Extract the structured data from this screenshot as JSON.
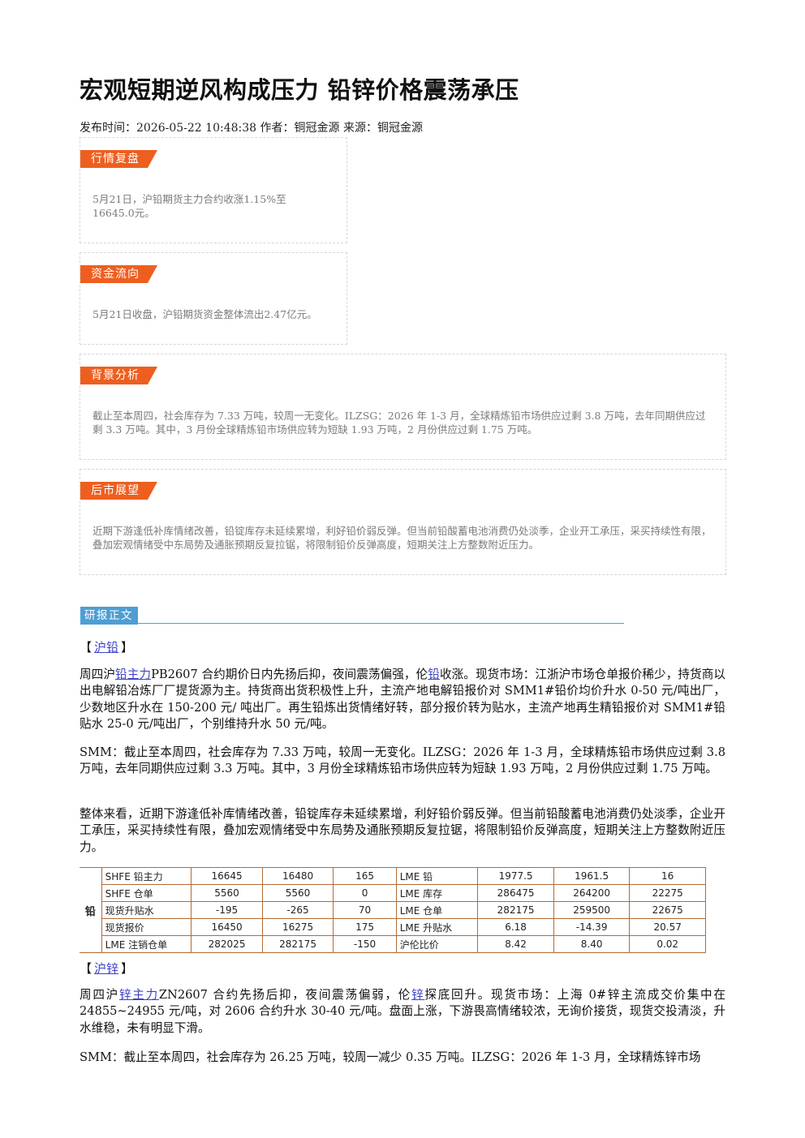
{
  "article": {
    "title": "宏观短期逆风构成压力 铅锌价格震荡承压",
    "meta": "发布时间：2026-05-22 10:48:38 作者：铜冠金源 来源：铜冠金源"
  },
  "cards": {
    "market_review": {
      "tag": "行情复盘",
      "text": "5月21日，沪铅期货主力合约收涨1.15%至16645.0元。"
    },
    "fund_flow": {
      "tag": "资金流向",
      "text": "5月21日收盘，沪铅期货资金整体流出2.47亿元。"
    },
    "background": {
      "tag": "背景分析",
      "text": "截止至本周四，社会库存为 7.33 万吨，较周一无变化。ILZSG：2026 年 1-3 月，全球精炼铅市场供应过剩 3.8 万吨，去年同期供应过剩 3.3 万吨。其中，3 月份全球精炼铅市场供应转为短缺 1.93 万吨，2 月份供应过剩 1.75 万吨。"
    },
    "outlook": {
      "tag": "后市展望",
      "text": "近期下游逢低补库情绪改善，铅锭库存未延续累增，利好铅价弱反弹。但当前铅酸蓄电池消费仍处淡季，企业开工承压，采买持续性有限，叠加宏观情绪受中东局势及通胀预期反复拉锯，将限制铅价反弹高度，短期关注上方整数附近压力。"
    }
  },
  "report": {
    "tag": "研报正文",
    "lead": {
      "bracket_open": "【",
      "link": "沪铅",
      "bracket_close": "】",
      "p1": {
        "a": "周四沪",
        "link1": "铅主力",
        "b": "PB2607 合约期价日内先扬后抑，夜间震荡偏强，伦",
        "link2": "铅",
        "c": "收涨。现货市场：江浙沪市场仓单报价稀少，持货商以出电解铅冶炼厂厂提货源为主。持货商出货积极性上升，主流产地电解铅报价对 SMM1#铅价均价升水 0-50 元/吨出厂，少数地区升水在 150-200 元/ 吨出厂。再生铅炼出货情绪好转，部分报价转为贴水，主流产地再生精铅报价对 SMM1#铅贴水 25-0 元/吨出厂，个别维持升水 50 元/吨。"
      },
      "p2": "SMM：截止至本周四，社会库存为 7.33 万吨，较周一无变化。ILZSG：2026 年 1-3 月，全球精炼铅市场供应过剩 3.8 万吨，去年同期供应过剩 3.3 万吨。其中，3 月份全球精炼铅市场供应转为短缺 1.93 万吨，2 月份供应过剩 1.75 万吨。",
      "p3": "整体来看，近期下游逢低补库情绪改善，铅锭库存未延续累增，利好铅价弱反弹。但当前铅酸蓄电池消费仍处淡季，企业开工承压，采买持续性有限，叠加宏观情绪受中东局势及通胀预期反复拉锯，将限制铅价反弹高度，短期关注上方整数附近压力。"
    },
    "table": {
      "metal": "铅",
      "rows": [
        [
          "SHFE 铅主力",
          "16645",
          "16480",
          "165",
          "LME 铅",
          "1977.5",
          "1961.5",
          "16"
        ],
        [
          "SHFE 仓单",
          "5560",
          "5560",
          "0",
          "LME 库存",
          "286475",
          "264200",
          "22275"
        ],
        [
          "现货升贴水",
          "-195",
          "-265",
          "70",
          "LME 仓单",
          "282175",
          "259500",
          "22675"
        ],
        [
          "现货报价",
          "16450",
          "16275",
          "175",
          "LME 升贴水",
          "6.18",
          "-14.39",
          "20.57"
        ],
        [
          "LME 注销仓单",
          "282025",
          "282175",
          "-150",
          "沪伦比价",
          "8.42",
          "8.40",
          "0.02"
        ]
      ]
    },
    "zinc": {
      "bracket_open": "【",
      "link": "沪锌",
      "bracket_close": "】",
      "p1": {
        "a": "周四沪",
        "link1": "锌主力",
        "b": "ZN2607 合约先扬后抑，夜间震荡偏弱，伦",
        "link2": "锌",
        "c": "探底回升。现货市场：上海 0#锌主流成交价集中在 24855~24955 元/吨，对 2606 合约升水 30-40 元/吨。盘面上涨，下游畏高情绪较浓，无询价接货，现货交投清淡，升水维稳，未有明显下滑。"
      },
      "p2": "SMM：截止至本周四，社会库存为 26.25 万吨，较周一减少 0.35 万吨。ILZSG：2026 年 1-3 月，全球精炼锌市场"
    }
  }
}
